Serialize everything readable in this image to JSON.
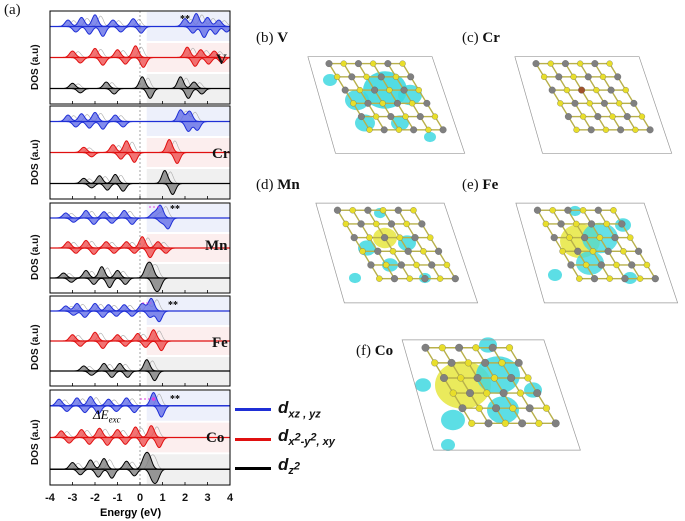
{
  "figure_label": "(a)",
  "dos_panel": {
    "ylabel": "DOS (a.u)",
    "xlabel": "Energy (eV)",
    "x_ticks": [
      "-4",
      "-3",
      "-2",
      "-1",
      "0",
      "1",
      "2",
      "3",
      "4"
    ],
    "elements": [
      "V",
      "Cr",
      "Mn",
      "Fe",
      "Co"
    ],
    "stars": "**",
    "delta_e_symbol": "ΔE",
    "delta_e_sub": "exc"
  },
  "legend": {
    "dxz_main": "d",
    "dxz_sub": "xz , yz",
    "dx2_main": "d",
    "dx2_sub": "x",
    "dx2_sup1": "2",
    "dx2_mid": "-y",
    "dx2_sup2": "2",
    "dx2_end": ", xy",
    "dz2_main": "d",
    "dz2_sub": "z",
    "dz2_sup": "2"
  },
  "structures": [
    {
      "tag": "(b)",
      "element": "V"
    },
    {
      "tag": "(c)",
      "element": "Cr"
    },
    {
      "tag": "(d)",
      "element": "Mn"
    },
    {
      "tag": "(e)",
      "element": "Fe"
    },
    {
      "tag": "(f)",
      "element": "Co"
    }
  ],
  "colors": {
    "dxz": "#1f2fd6",
    "dx2": "#e01010",
    "dz2": "#000000",
    "dxz_fill": "#5a66e6",
    "dx2_fill": "#ee4444",
    "dz2_fill": "#777777",
    "bg_blue": "#dfe3f7",
    "bg_red": "#f9e0e0",
    "bg_gray": "#e4e4e4",
    "isosurface": "#3fd8e0",
    "isosurface_yellow": "#e8e84a",
    "sulfur": "#e8de2a",
    "metal": "#808080",
    "dopant": "#a0522d"
  },
  "chart_data": {
    "type": "line",
    "title": "",
    "xlabel": "Energy (eV)",
    "ylabel": "DOS (a.u)",
    "xlim": [
      -4,
      4
    ],
    "x_ticks": [
      -4,
      -3,
      -2,
      -1,
      0,
      1,
      2,
      3,
      4
    ],
    "panels": [
      {
        "element": "V",
        "series": [
          {
            "name": "dxz,yz",
            "peaks": [
              [
                -3.2,
                0.5
              ],
              [
                -2.6,
                0.7
              ],
              [
                -2.0,
                0.9
              ],
              [
                -1.2,
                0.5
              ],
              [
                -0.3,
                0.6
              ],
              [
                2.0,
                0.6
              ],
              [
                2.5,
                1.0
              ],
              [
                3.0,
                0.7
              ],
              [
                3.5,
                0.5
              ]
            ]
          },
          {
            "name": "dx2-y2,xy",
            "peaks": [
              [
                -3.0,
                0.5
              ],
              [
                -2.0,
                0.7
              ],
              [
                -1.0,
                0.6
              ],
              [
                -0.2,
                0.9
              ],
              [
                2.1,
                0.8
              ],
              [
                2.7,
                0.6
              ],
              [
                3.3,
                0.5
              ]
            ]
          },
          {
            "name": "dz2",
            "peaks": [
              [
                -3.0,
                0.4
              ],
              [
                -1.5,
                0.5
              ],
              [
                0.1,
                0.9
              ],
              [
                1.8,
                0.9
              ],
              [
                2.4,
                0.5
              ]
            ]
          }
        ]
      },
      {
        "element": "Cr",
        "series": [
          {
            "name": "dxz,yz",
            "peaks": [
              [
                -3.2,
                0.5
              ],
              [
                -2.6,
                0.6
              ],
              [
                -2.0,
                0.7
              ],
              [
                -1.1,
                0.5
              ],
              [
                1.8,
                0.9
              ],
              [
                2.2,
                0.8
              ]
            ]
          },
          {
            "name": "dx2-y2,xy",
            "peaks": [
              [
                -2.5,
                0.4
              ],
              [
                -1.2,
                0.6
              ],
              [
                -0.6,
                0.9
              ],
              [
                1.3,
                1.0
              ]
            ]
          },
          {
            "name": "dz2",
            "peaks": [
              [
                -2.5,
                0.4
              ],
              [
                -1.8,
                0.6
              ],
              [
                -1.1,
                0.7
              ],
              [
                1.1,
                1.0
              ]
            ]
          }
        ]
      },
      {
        "element": "Mn",
        "series": [
          {
            "name": "dxz,yz",
            "peaks": [
              [
                -3.3,
                0.4
              ],
              [
                -2.4,
                0.6
              ],
              [
                -1.6,
                0.5
              ],
              [
                -0.7,
                0.6
              ],
              [
                0.6,
                0.4
              ],
              [
                0.9,
                1.0
              ]
            ]
          },
          {
            "name": "dx2-y2,xy",
            "peaks": [
              [
                -3.2,
                0.5
              ],
              [
                -2.4,
                0.6
              ],
              [
                -1.5,
                0.5
              ],
              [
                -0.6,
                0.5
              ],
              [
                0.1,
                0.9
              ],
              [
                0.8,
                0.5
              ]
            ]
          },
          {
            "name": "dz2",
            "peaks": [
              [
                -3.4,
                0.4
              ],
              [
                -2.4,
                0.6
              ],
              [
                -1.7,
                0.9
              ],
              [
                -1.0,
                0.6
              ],
              [
                0.3,
                0.8
              ],
              [
                0.5,
                0.9
              ]
            ]
          }
        ]
      },
      {
        "element": "Fe",
        "series": [
          {
            "name": "dxz,yz",
            "peaks": [
              [
                -3.3,
                0.4
              ],
              [
                -2.8,
                0.6
              ],
              [
                -2.0,
                0.6
              ],
              [
                -1.4,
                0.5
              ],
              [
                -0.7,
                0.5
              ],
              [
                0.1,
                0.6
              ],
              [
                0.5,
                1.0
              ]
            ]
          },
          {
            "name": "dx2-y2,xy",
            "peaks": [
              [
                -3.0,
                0.5
              ],
              [
                -2.0,
                0.7
              ],
              [
                -1.0,
                0.5
              ],
              [
                -0.1,
                0.6
              ],
              [
                0.6,
                0.9
              ]
            ]
          },
          {
            "name": "dz2",
            "peaks": [
              [
                -2.5,
                0.4
              ],
              [
                -1.6,
                0.6
              ],
              [
                -0.9,
                0.6
              ],
              [
                0.3,
                0.9
              ]
            ]
          }
        ]
      },
      {
        "element": "Co",
        "series": [
          {
            "name": "dxz,yz",
            "peaks": [
              [
                -3.6,
                0.5
              ],
              [
                -2.8,
                0.6
              ],
              [
                -2.2,
                0.7
              ],
              [
                -1.4,
                0.5
              ],
              [
                -0.6,
                0.6
              ],
              [
                0.6,
                1.0
              ]
            ]
          },
          {
            "name": "dx2-y2,xy",
            "peaks": [
              [
                -3.5,
                0.5
              ],
              [
                -2.6,
                0.6
              ],
              [
                -1.8,
                0.7
              ],
              [
                -1.0,
                0.6
              ],
              [
                -0.2,
                0.8
              ],
              [
                0.5,
                0.9
              ]
            ]
          },
          {
            "name": "dz2",
            "peaks": [
              [
                -3.0,
                0.5
              ],
              [
                -2.2,
                0.7
              ],
              [
                -1.6,
                0.8
              ],
              [
                -0.6,
                0.6
              ],
              [
                0.2,
                0.8
              ],
              [
                0.4,
                0.9
              ]
            ]
          }
        ]
      }
    ]
  }
}
